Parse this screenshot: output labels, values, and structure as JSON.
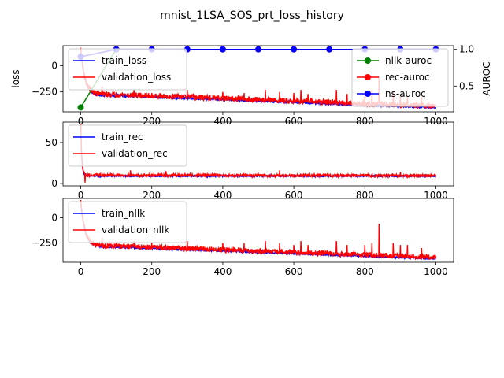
{
  "figure": {
    "title": "mnist_1LSA_SOS_prt_loss_history"
  },
  "chart_data": [
    {
      "type": "line",
      "panel": "top",
      "ylabel": "loss",
      "y2label": "AUROC",
      "xlim": [
        -50,
        1050
      ],
      "ylim": [
        -440,
        190
      ],
      "y2lim": [
        0.15,
        1.05
      ],
      "xticks": [
        0,
        200,
        400,
        600,
        800,
        1000
      ],
      "yticks": [
        0,
        -250
      ],
      "y2ticks": [
        0.5,
        1.0
      ],
      "legend_left_position": "upper-left",
      "legend_right_position": "upper-right",
      "series": [
        {
          "name": "train_loss",
          "color": "#0000ff",
          "axis": "left",
          "start": 150,
          "floor": -285,
          "end": -400,
          "decay": 12,
          "noise": 8,
          "spikes": []
        },
        {
          "name": "validation_loss",
          "color": "#ff0000",
          "axis": "left",
          "start": 160,
          "floor": -275,
          "end": -385,
          "decay": 12,
          "noise": 25,
          "spikes": [
            [
              60,
              -200
            ],
            [
              150,
              -230
            ],
            [
              200,
              -260
            ],
            [
              300,
              -230
            ],
            [
              400,
              -250
            ],
            [
              460,
              -260
            ],
            [
              520,
              -230
            ],
            [
              560,
              -250
            ],
            [
              600,
              -260
            ],
            [
              620,
              -230
            ],
            [
              640,
              -270
            ],
            [
              720,
              -230
            ],
            [
              750,
              -270
            ],
            [
              800,
              -270
            ],
            [
              820,
              -230
            ],
            [
              840,
              -100
            ],
            [
              880,
              -250
            ],
            [
              900,
              -270
            ],
            [
              920,
              -290
            ],
            [
              960,
              -300
            ]
          ]
        }
      ],
      "auroc_series": [
        {
          "name": "nllk-auroc",
          "color": "#008000",
          "x": [
            0,
            100
          ],
          "y": [
            0.21,
            1.0
          ]
        },
        {
          "name": "rec-auroc",
          "color": "#ff0000",
          "x": [
            0,
            100,
            200,
            300,
            400,
            500,
            600,
            700,
            800,
            900,
            1000
          ],
          "y": [
            0.9,
            1.0,
            1.0,
            1.0,
            1.0,
            1.0,
            1.0,
            1.0,
            1.0,
            1.0,
            1.0
          ]
        },
        {
          "name": "ns-auroc",
          "color": "#0000ff",
          "x": [
            0,
            100,
            200,
            300,
            400,
            500,
            600,
            700,
            800,
            900,
            1000
          ],
          "y": [
            0.9,
            1.0,
            1.0,
            1.0,
            1.0,
            1.0,
            1.0,
            1.0,
            1.0,
            1.0,
            1.0
          ]
        }
      ]
    },
    {
      "type": "line",
      "panel": "middle",
      "xlim": [
        -50,
        1050
      ],
      "ylim": [
        -3,
        75
      ],
      "xticks": [
        0,
        200,
        400,
        600,
        800,
        1000
      ],
      "yticks": [
        0,
        50
      ],
      "legend_position": "upper-left",
      "series": [
        {
          "name": "train_rec",
          "color": "#0000ff",
          "start": 72,
          "floor": 9,
          "end": 9,
          "decay": 3,
          "noise": 0.8,
          "spikes": []
        },
        {
          "name": "validation_rec",
          "color": "#ff0000",
          "start": 72,
          "floor": 10,
          "end": 9.5,
          "decay": 3,
          "noise": 1.8,
          "spikes": [
            [
              12,
              1
            ],
            [
              140,
              16
            ],
            [
              240,
              15
            ],
            [
              560,
              16
            ],
            [
              900,
              14
            ]
          ]
        }
      ]
    },
    {
      "type": "line",
      "panel": "bottom",
      "xlim": [
        -50,
        1050
      ],
      "ylim": [
        -440,
        190
      ],
      "xticks": [
        0,
        200,
        400,
        600,
        800,
        1000
      ],
      "yticks": [
        0,
        -250
      ],
      "legend_position": "upper-left",
      "series": [
        {
          "name": "train_nllk",
          "color": "#0000ff",
          "start": 150,
          "floor": -290,
          "end": -405,
          "decay": 12,
          "noise": 8,
          "spikes": []
        },
        {
          "name": "validation_nllk",
          "color": "#ff0000",
          "start": 160,
          "floor": -280,
          "end": -390,
          "decay": 12,
          "noise": 25,
          "spikes": [
            [
              60,
              -200
            ],
            [
              150,
              -230
            ],
            [
              200,
              -250
            ],
            [
              300,
              -230
            ],
            [
              400,
              -250
            ],
            [
              460,
              -250
            ],
            [
              520,
              -230
            ],
            [
              560,
              -250
            ],
            [
              600,
              -270
            ],
            [
              620,
              -230
            ],
            [
              640,
              -270
            ],
            [
              720,
              -230
            ],
            [
              750,
              -270
            ],
            [
              800,
              -270
            ],
            [
              820,
              -250
            ],
            [
              840,
              -60
            ],
            [
              880,
              -250
            ],
            [
              900,
              -270
            ],
            [
              920,
              -270
            ],
            [
              960,
              -300
            ]
          ]
        }
      ]
    }
  ]
}
